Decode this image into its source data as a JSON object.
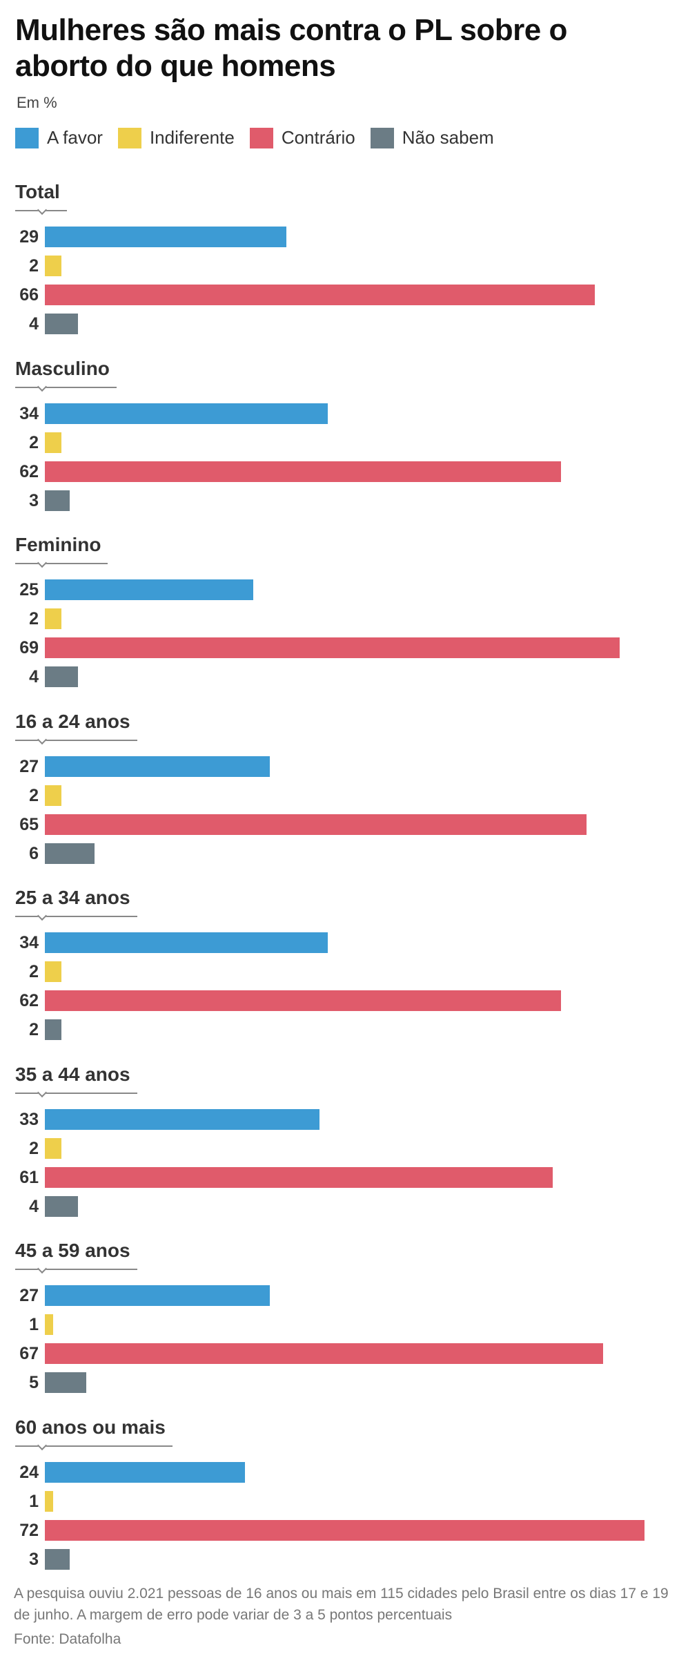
{
  "title": "Mulheres são mais contra o PL sobre o aborto do que homens",
  "unit": "Em %",
  "legend": [
    {
      "label": "A favor",
      "color": "#3d9bd4"
    },
    {
      "label": "Indiferente",
      "color": "#eecf4b"
    },
    {
      "label": "Contrário",
      "color": "#e05b6b"
    },
    {
      "label": "Não sabem",
      "color": "#6b7c85"
    }
  ],
  "chart_data": {
    "type": "bar",
    "orientation": "horizontal",
    "unit": "%",
    "series_names": [
      "A favor",
      "Indiferente",
      "Contrário",
      "Não sabem"
    ],
    "groups": [
      {
        "label": "Total",
        "values": [
          29,
          2,
          66,
          4
        ]
      },
      {
        "label": "Masculino",
        "values": [
          34,
          2,
          62,
          3
        ]
      },
      {
        "label": "Feminino",
        "values": [
          25,
          2,
          69,
          4
        ]
      },
      {
        "label": "16 a 24 anos",
        "values": [
          27,
          2,
          65,
          6
        ]
      },
      {
        "label": "25 a 34 anos",
        "values": [
          34,
          2,
          62,
          2
        ]
      },
      {
        "label": "35 a 44 anos",
        "values": [
          33,
          2,
          61,
          4
        ]
      },
      {
        "label": "45 a 59 anos",
        "values": [
          27,
          1,
          67,
          5
        ]
      },
      {
        "label": "60 anos ou mais",
        "values": [
          24,
          1,
          72,
          3
        ]
      }
    ],
    "xlim": [
      0,
      72
    ]
  },
  "note": "A pesquisa ouviu 2.021 pessoas de 16 anos ou mais em 115 cidades pelo Brasil entre os dias 17 e 19 de junho. A margem de erro pode variar de 3 a 5 pontos percentuais",
  "source": "Fonte: Datafolha"
}
